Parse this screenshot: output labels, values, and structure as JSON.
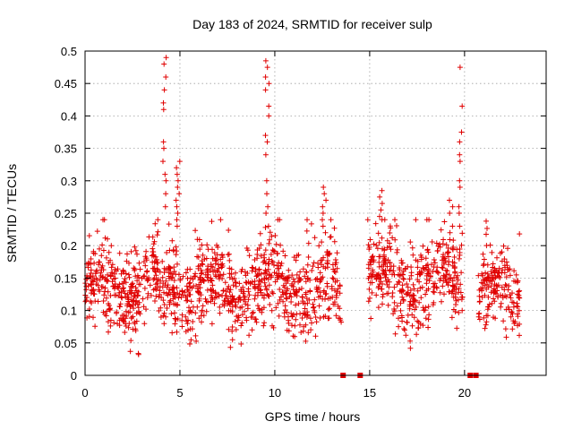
{
  "chart_data": {
    "type": "scatter",
    "title": "Day 183 of 2024, SRMTID for receiver sulp",
    "xlabel": "GPS time / hours",
    "ylabel": "SRMTID / TECUs",
    "xlim": [
      0,
      24.3
    ],
    "ylim": [
      0,
      0.5
    ],
    "x_ticks": [
      0,
      5,
      10,
      15,
      20
    ],
    "x_tick_labels": [
      "0",
      "5",
      "10",
      "15",
      "20"
    ],
    "y_ticks": [
      0,
      0.05,
      0.1,
      0.15,
      0.2,
      0.25,
      0.3,
      0.35,
      0.4,
      0.45,
      0.5
    ],
    "y_tick_labels": [
      "0",
      "0.05",
      "0.1",
      "0.15",
      "0.2",
      "0.25",
      "0.3",
      "0.35",
      "0.4",
      "0.45",
      "0.5"
    ],
    "grid": true,
    "marker": "plus",
    "color": "#e00000",
    "series": [
      {
        "name": "SRMTID",
        "segments": [
          {
            "x_start": 0.0,
            "x_end": 13.5,
            "baseline": 0.135,
            "spread": 0.045
          },
          {
            "x_start": 14.9,
            "x_end": 19.9,
            "baseline": 0.145,
            "spread": 0.045
          },
          {
            "x_start": 20.7,
            "x_end": 22.9,
            "baseline": 0.125,
            "spread": 0.04
          }
        ],
        "spikes": [
          {
            "x": 4.2,
            "values": [
              0.49,
              0.48,
              0.46,
              0.44,
              0.42,
              0.41,
              0.36,
              0.35,
              0.33,
              0.31,
              0.3,
              0.28,
              0.26
            ]
          },
          {
            "x": 4.9,
            "values": [
              0.33,
              0.32,
              0.31,
              0.3,
              0.29,
              0.28,
              0.27,
              0.26,
              0.25,
              0.24,
              0.23
            ]
          },
          {
            "x": 9.6,
            "values": [
              0.485,
              0.475,
              0.46,
              0.45,
              0.44,
              0.415,
              0.4,
              0.37,
              0.36,
              0.34,
              0.3,
              0.28,
              0.26,
              0.25,
              0.23
            ]
          },
          {
            "x": 12.6,
            "values": [
              0.29,
              0.28,
              0.27,
              0.26,
              0.25,
              0.24,
              0.23,
              0.22
            ]
          },
          {
            "x": 15.6,
            "values": [
              0.285,
              0.275,
              0.265,
              0.255,
              0.245
            ]
          },
          {
            "x": 19.3,
            "values": [
              0.27,
              0.26,
              0.25,
              0.23,
              0.22
            ]
          },
          {
            "x": 19.8,
            "values": [
              0.475,
              0.415,
              0.375,
              0.36,
              0.34,
              0.33,
              0.3,
              0.29,
              0.26,
              0.25,
              0.23
            ]
          }
        ],
        "zero_markers": [
          13.6,
          14.5,
          20.3,
          20.6
        ]
      }
    ]
  }
}
